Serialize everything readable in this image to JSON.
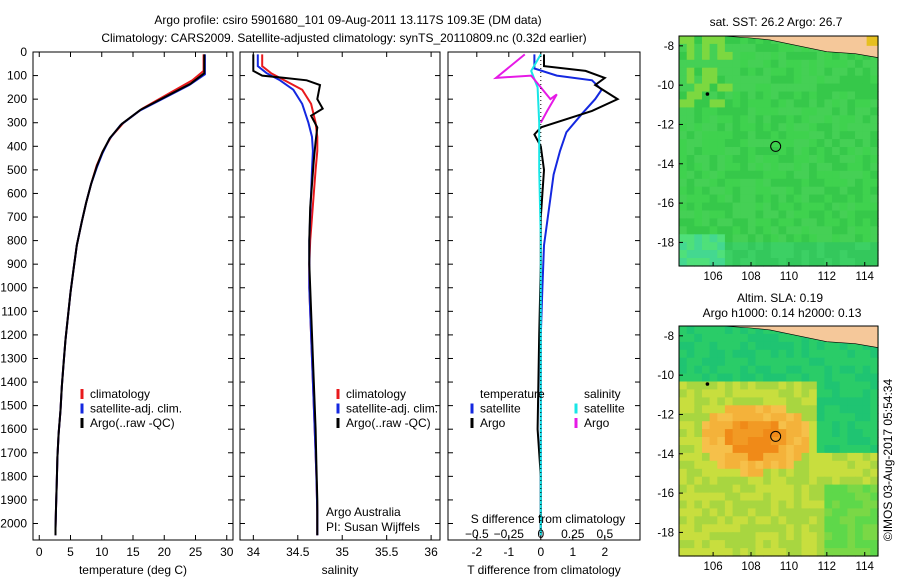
{
  "header": {
    "line1": "Argo profile: csiro 5901680_101 09-Aug-2011 13.117S 109.3E (DM data)",
    "line2": "Climatology: CARS2009. Satellite-adjusted climatology: synTS_20110809.nc (0.32d earlier)"
  },
  "colors": {
    "climatology": "#e8191c",
    "satellite": "#1428e0",
    "argo": "#000000",
    "sat_salinity": "#19e6e6",
    "argo_salinity": "#e619e6"
  },
  "side_text": "©IMOS 03-Aug-2017 05:54:34",
  "chart_data": [
    {
      "id": "temperature",
      "type": "line",
      "xlabel": "temperature (deg C)",
      "ylabel": "",
      "xlim": [
        -1,
        31
      ],
      "ylim": [
        2070,
        0
      ],
      "xticks": [
        0,
        5,
        10,
        15,
        20,
        25,
        30
      ],
      "xtick_labels": [
        "0",
        "5",
        "10",
        "15",
        "20",
        "25",
        "30"
      ],
      "yticks": [
        0,
        100,
        200,
        300,
        400,
        500,
        600,
        700,
        800,
        900,
        1000,
        1100,
        1200,
        1300,
        1400,
        1500,
        1600,
        1700,
        1800,
        1900,
        2000
      ],
      "ytick_labels": [
        "0",
        "100",
        "200",
        "300",
        "400",
        "500",
        "600",
        "700",
        "800",
        "900",
        "1000",
        "1100",
        "1200",
        "1300",
        "1400",
        "1500",
        "1600",
        "1700",
        "1800",
        "1900",
        "2000"
      ],
      "legend": [
        "climatology",
        "satellite-adj. clim.",
        "Argo(..raw -QC)"
      ],
      "series": [
        {
          "name": "climatology",
          "color": "#e8191c",
          "x": [
            26.3,
            26.3,
            24.5,
            20.5,
            16.5,
            13.5,
            11.5,
            10.2,
            9.2,
            8.3,
            7.5,
            6.8,
            6.0,
            5.5,
            5.0,
            4.6,
            4.2,
            3.9,
            3.6,
            3.4,
            3.1,
            2.9,
            2.8,
            2.7,
            2.6,
            2.6
          ],
          "y": [
            10,
            80,
            120,
            180,
            240,
            300,
            360,
            420,
            480,
            560,
            640,
            720,
            820,
            920,
            1020,
            1120,
            1220,
            1320,
            1420,
            1520,
            1620,
            1720,
            1820,
            1920,
            2020,
            2050
          ]
        },
        {
          "name": "satellite-adj. clim.",
          "color": "#1428e0",
          "x": [
            26.5,
            26.5,
            24.0,
            20.0,
            16.0,
            13.0,
            11.2,
            10.1,
            9.2,
            8.3,
            7.5,
            6.8,
            6.0,
            5.5,
            5.0,
            4.6,
            4.2,
            3.9,
            3.6,
            3.4,
            3.1,
            2.9,
            2.8,
            2.7,
            2.6,
            2.6
          ],
          "y": [
            10,
            95,
            140,
            195,
            250,
            310,
            370,
            430,
            490,
            560,
            640,
            720,
            820,
            920,
            1020,
            1120,
            1220,
            1320,
            1420,
            1520,
            1620,
            1720,
            1820,
            1920,
            2020,
            2050
          ]
        },
        {
          "name": "Argo(..raw -QC)",
          "color": "#000000",
          "x": [
            26.4,
            26.4,
            24.2,
            20.2,
            16.2,
            13.2,
            11.3,
            10.1,
            9.2,
            8.3,
            7.5,
            6.8,
            6.0,
            5.5,
            5.0,
            4.6,
            4.2,
            3.9,
            3.6,
            3.4,
            3.1,
            2.9,
            2.8,
            2.7,
            2.6,
            2.6
          ],
          "y": [
            10,
            90,
            135,
            190,
            245,
            305,
            365,
            425,
            485,
            560,
            640,
            720,
            820,
            920,
            1020,
            1120,
            1220,
            1320,
            1420,
            1520,
            1620,
            1720,
            1820,
            1920,
            2020,
            2050
          ]
        }
      ]
    },
    {
      "id": "salinity",
      "type": "line",
      "xlabel": "salinity",
      "xlim": [
        33.85,
        36.1
      ],
      "ylim": [
        2070,
        0
      ],
      "xticks": [
        34,
        34.5,
        35,
        35.5,
        36
      ],
      "xtick_labels": [
        "34",
        "34.5",
        "35",
        "35.5",
        "36"
      ],
      "legend": [
        "climatology",
        "satellite-adj. clim.",
        "Argo(..raw -QC)"
      ],
      "annotation": [
        "Argo Australia",
        "PI: Susan Wijffels"
      ],
      "series": [
        {
          "name": "climatology",
          "color": "#e8191c",
          "x": [
            34.1,
            34.1,
            34.2,
            34.35,
            34.55,
            34.65,
            34.7,
            34.72,
            34.72,
            34.7,
            34.68,
            34.66,
            34.64,
            34.63,
            34.63,
            34.64,
            34.65,
            34.66,
            34.67,
            34.68,
            34.69,
            34.7,
            34.71,
            34.72,
            34.72
          ],
          "y": [
            10,
            60,
            90,
            120,
            160,
            220,
            300,
            360,
            420,
            500,
            600,
            700,
            800,
            900,
            1000,
            1100,
            1200,
            1300,
            1400,
            1500,
            1600,
            1700,
            1800,
            1950,
            2050
          ]
        },
        {
          "name": "satellite-adj. clim.",
          "color": "#1428e0",
          "x": [
            34.05,
            34.05,
            34.15,
            34.3,
            34.45,
            34.55,
            34.62,
            34.66,
            34.67,
            34.66,
            34.65,
            34.64,
            34.63,
            34.63,
            34.63,
            34.64,
            34.65,
            34.66,
            34.67,
            34.68,
            34.69,
            34.7,
            34.71,
            34.72,
            34.72
          ],
          "y": [
            10,
            60,
            90,
            120,
            160,
            220,
            300,
            360,
            420,
            500,
            600,
            700,
            800,
            900,
            1000,
            1100,
            1200,
            1300,
            1400,
            1500,
            1600,
            1700,
            1800,
            1950,
            2050
          ]
        },
        {
          "name": "Argo(..raw -QC)",
          "color": "#000000",
          "x": [
            34.0,
            34.0,
            34.1,
            34.35,
            34.6,
            34.75,
            34.72,
            34.78,
            34.65,
            34.72,
            34.7,
            34.68,
            34.66,
            34.64,
            34.63,
            34.63,
            34.64,
            34.65,
            34.66,
            34.67,
            34.68,
            34.69,
            34.7,
            34.71,
            34.72,
            34.72
          ],
          "y": [
            10,
            80,
            100,
            110,
            120,
            140,
            200,
            240,
            270,
            320,
            380,
            460,
            560,
            660,
            800,
            900,
            1000,
            1100,
            1200,
            1300,
            1400,
            1500,
            1600,
            1750,
            1900,
            2050
          ]
        }
      ]
    },
    {
      "id": "differences",
      "type": "line",
      "xlabel": "T difference from climatology",
      "xlabel_top": "S difference from climatology",
      "xlim": [
        -2.9,
        3.1
      ],
      "ylim": [
        2070,
        0
      ],
      "xticks": [
        -2,
        -1,
        0,
        1,
        2
      ],
      "xtick_labels": [
        "-2",
        "-1",
        "0",
        "1",
        "2"
      ],
      "s_ticks": [
        -0.5,
        -0.25,
        0,
        0.25,
        0.5
      ],
      "s_tick_labels": [
        "−0.5",
        "−0.25",
        "0",
        "0.25",
        "0.5"
      ],
      "legend_temperature": [
        "temperature",
        "satellite",
        "Argo"
      ],
      "legend_salinity": [
        "salinity",
        "satellite",
        "Argo"
      ],
      "series": [
        {
          "name": "satellite",
          "color": "#1428e0",
          "x": [
            -0.2,
            -0.2,
            0.5,
            1.6,
            1.9,
            1.7,
            1.3,
            0.8,
            0.6,
            0.4,
            0.3,
            0.2,
            0.1,
            0.05,
            0.0,
            0.0,
            0.0,
            0.0,
            0.0
          ],
          "y": [
            10,
            70,
            100,
            120,
            160,
            200,
            260,
            340,
            420,
            520,
            620,
            720,
            820,
            1000,
            1200,
            1400,
            1600,
            1800,
            2050
          ]
        },
        {
          "name": "Argo",
          "color": "#000000",
          "x": [
            0.1,
            0.1,
            1.4,
            2.0,
            1.7,
            2.4,
            1.6,
            0.0,
            -0.2,
            0.0,
            0.1,
            0.05,
            0.0,
            0.0,
            -0.05,
            -0.1,
            -0.05,
            0.0,
            0.0
          ],
          "y": [
            10,
            60,
            80,
            110,
            140,
            200,
            250,
            320,
            350,
            400,
            500,
            600,
            700,
            900,
            1200,
            1600,
            1700,
            1800,
            2050
          ]
        },
        {
          "name": "salinity satellite",
          "color": "#19e6e6",
          "x": [
            0.0,
            -0.3,
            -0.1,
            -0.05,
            -0.05,
            0.0,
            0.0,
            0.0,
            0.0,
            0.0
          ],
          "y": [
            10,
            80,
            150,
            300,
            500,
            800,
            1100,
            1500,
            1800,
            2050
          ]
        },
        {
          "name": "salinity Argo",
          "color": "#e619e6",
          "x": [
            -0.5,
            -1.4,
            -0.3,
            0.3,
            0.5,
            0.2,
            0.0
          ],
          "y": [
            10,
            110,
            100,
            200,
            180,
            250,
            300
          ]
        }
      ]
    },
    {
      "id": "sst_map",
      "type": "heatmap",
      "title": "sat. SST: 26.2 Argo: 26.7",
      "xticks": [
        106,
        108,
        110,
        112,
        114
      ],
      "xtick_labels": [
        "106",
        "108",
        "110",
        "112",
        "114"
      ],
      "yticks": [
        -8,
        -10,
        -12,
        -14,
        -16,
        -18
      ],
      "ytick_labels": [
        "-8",
        "-10",
        "-12",
        "-14",
        "-16",
        "-18"
      ],
      "xlim": [
        104.2,
        114.7
      ],
      "ylim": [
        -19.2,
        -7.5
      ],
      "marker": [
        109.3,
        -13.117
      ],
      "argo_value": 26.7,
      "sat_value": 26.2
    },
    {
      "id": "sla_map",
      "type": "heatmap",
      "title": "Altim. SLA: 0.19",
      "subtitle": "Argo h1000: 0.14 h2000: 0.13",
      "xticks": [
        106,
        108,
        110,
        112,
        114
      ],
      "xtick_labels": [
        "106",
        "108",
        "110",
        "112",
        "114"
      ],
      "yticks": [
        -8,
        -10,
        -12,
        -14,
        -16,
        -18
      ],
      "ytick_labels": [
        "-8",
        "-10",
        "-12",
        "-14",
        "-16",
        "-18"
      ],
      "xlim": [
        104.2,
        114.7
      ],
      "ylim": [
        -19.2,
        -7.5
      ],
      "marker": [
        109.3,
        -13.117
      ],
      "sla": 0.19,
      "h1000": 0.14,
      "h2000": 0.13
    }
  ]
}
